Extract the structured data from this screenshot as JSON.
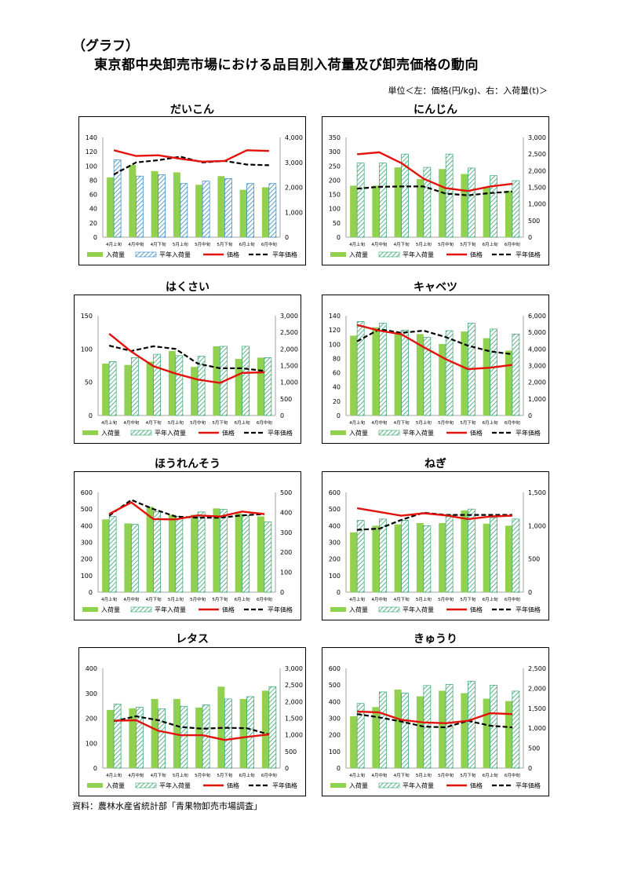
{
  "header": {
    "label": "（グラフ）",
    "title": "東京都中央卸売市場における品目別入荷量及び卸売価格の動向",
    "unit": "単位＜左：価格(円/kg)、右：入荷量(t)＞"
  },
  "source": "資料：農林水産省統計部「青果物卸売市場調査」",
  "legend": [
    "入荷量",
    "平年入荷量",
    "価格",
    "平年価格"
  ],
  "colors": {
    "arrival": "#92D050",
    "hatch_green": "#2FA36B",
    "hatch_blue": "#2E86C1",
    "price": "#E3120B",
    "avg_price": "#000000"
  },
  "chart_data": [
    {
      "type": "bar",
      "title": "だいこん",
      "categories": [
        "4月上旬",
        "4月中旬",
        "4月下旬",
        "5月上旬",
        "5月中旬",
        "5月下旬",
        "6月上旬",
        "6月中旬"
      ],
      "left_axis": {
        "min": 0,
        "max": 140,
        "ticks": [
          0,
          20,
          40,
          60,
          80,
          100,
          120,
          140
        ]
      },
      "right_axis": {
        "min": 0,
        "max": 4000,
        "ticks": [
          "0",
          "1,000",
          "2,000",
          "3,000",
          "4,000"
        ]
      },
      "series": [
        {
          "name": "入荷量",
          "kind": "bar",
          "axis": "right",
          "values": [
            2400,
            2900,
            2650,
            2600,
            2100,
            2450,
            1900,
            2000
          ]
        },
        {
          "name": "平年入荷量",
          "kind": "hatched_bar",
          "axis": "right",
          "values": [
            3100,
            2450,
            2500,
            2150,
            2250,
            2350,
            2150,
            2150
          ]
        },
        {
          "name": "価格",
          "kind": "line",
          "axis": "left",
          "values": [
            122,
            114,
            115,
            110,
            106,
            107,
            122,
            121
          ]
        },
        {
          "name": "平年価格",
          "kind": "dashed_line",
          "axis": "left",
          "values": [
            88,
            105,
            108,
            113,
            105,
            107,
            102,
            101
          ]
        }
      ],
      "hatch": "blue"
    },
    {
      "type": "bar",
      "title": "にんじん",
      "categories": [
        "4月上旬",
        "4月中旬",
        "4月下旬",
        "5月上旬",
        "5月中旬",
        "5月下旬",
        "6月上旬",
        "6月中旬"
      ],
      "left_axis": {
        "min": 0,
        "max": 350,
        "ticks": [
          0,
          50,
          100,
          150,
          200,
          250,
          300,
          350
        ]
      },
      "right_axis": {
        "min": 0,
        "max": 3000,
        "ticks": [
          "0",
          "500",
          "1,000",
          "1,500",
          "2,000",
          "2,500",
          "3,000"
        ]
      },
      "series": [
        {
          "name": "入荷量",
          "kind": "bar",
          "axis": "right",
          "values": [
            1550,
            1550,
            2100,
            1750,
            2050,
            1900,
            1500,
            1400
          ]
        },
        {
          "name": "平年入荷量",
          "kind": "hatched_bar",
          "axis": "right",
          "values": [
            2230,
            2230,
            2500,
            2100,
            2500,
            2080,
            1850,
            1700
          ]
        },
        {
          "name": "価格",
          "kind": "line",
          "axis": "left",
          "values": [
            291,
            298,
            260,
            205,
            172,
            162,
            178,
            187
          ]
        },
        {
          "name": "平年価格",
          "kind": "dashed_line",
          "axis": "left",
          "values": [
            170,
            177,
            178,
            178,
            153,
            147,
            155,
            160
          ]
        }
      ],
      "hatch": "green"
    },
    {
      "type": "bar",
      "title": "はくさい",
      "categories": [
        "4月上旬",
        "4月中旬",
        "4月下旬",
        "5月上旬",
        "5月中旬",
        "5月下旬",
        "6月上旬",
        "6月中旬"
      ],
      "left_axis": {
        "min": 0,
        "max": 150,
        "ticks": [
          0,
          50,
          100,
          150
        ]
      },
      "right_axis": {
        "min": 0,
        "max": 3000,
        "ticks": [
          "0",
          "500",
          "1,000",
          "1,500",
          "2,000",
          "2,500",
          "3,000"
        ]
      },
      "series": [
        {
          "name": "入荷量",
          "kind": "bar",
          "axis": "right",
          "values": [
            1560,
            1520,
            1620,
            1940,
            1460,
            2080,
            1700,
            1740
          ]
        },
        {
          "name": "平年入荷量",
          "kind": "hatched_bar",
          "axis": "right",
          "values": [
            1620,
            1740,
            1840,
            1800,
            1780,
            2080,
            2080,
            1740
          ]
        },
        {
          "name": "価格",
          "kind": "line",
          "axis": "left",
          "values": [
            123,
            96,
            74,
            63,
            54,
            49,
            64,
            65
          ]
        },
        {
          "name": "平年価格",
          "kind": "dashed_line",
          "axis": "left",
          "values": [
            105,
            97,
            104,
            100,
            78,
            71,
            71,
            67
          ]
        }
      ],
      "hatch": "green"
    },
    {
      "type": "bar",
      "title": "キャベツ",
      "categories": [
        "4月上旬",
        "4月中旬",
        "4月下旬",
        "5月上旬",
        "5月中旬",
        "5月下旬",
        "6月上旬",
        "6月中旬"
      ],
      "left_axis": {
        "min": 0,
        "max": 140,
        "ticks": [
          0,
          20,
          40,
          60,
          80,
          100,
          120,
          140
        ]
      },
      "right_axis": {
        "min": 0,
        "max": 6000,
        "ticks": [
          "0",
          "1,000",
          "2,000",
          "3,000",
          "4,000",
          "5,000",
          "6,000"
        ]
      },
      "series": [
        {
          "name": "入荷量",
          "kind": "bar",
          "axis": "right",
          "values": [
            4800,
            5300,
            5000,
            4900,
            4300,
            5050,
            4650,
            3900
          ]
        },
        {
          "name": "平年入荷量",
          "kind": "hatched_bar",
          "axis": "right",
          "values": [
            5650,
            5550,
            5130,
            4700,
            5100,
            5550,
            5200,
            4900
          ]
        },
        {
          "name": "価格",
          "kind": "line",
          "axis": "left",
          "values": [
            127,
            119,
            114,
            96,
            79,
            65,
            67,
            71
          ]
        },
        {
          "name": "平年価格",
          "kind": "dashed_line",
          "axis": "left",
          "values": [
            104,
            121,
            116,
            119,
            110,
            98,
            90,
            86
          ]
        }
      ],
      "hatch": "green"
    },
    {
      "type": "bar",
      "title": "ほうれんそう",
      "categories": [
        "4月上旬",
        "4月中旬",
        "4月下旬",
        "5月上旬",
        "5月中旬",
        "5月下旬",
        "6月上旬",
        "6月中旬"
      ],
      "left_axis": {
        "min": 0,
        "max": 600,
        "ticks": [
          0,
          100,
          200,
          300,
          400,
          500,
          600
        ]
      },
      "right_axis": {
        "min": 0,
        "max": 500,
        "ticks": [
          "0",
          "100",
          "200",
          "300",
          "400",
          "500"
        ]
      },
      "series": [
        {
          "name": "入荷量",
          "kind": "bar",
          "axis": "right",
          "values": [
            365,
            345,
            428,
            388,
            388,
            420,
            395,
            380
          ]
        },
        {
          "name": "平年入荷量",
          "kind": "hatched_bar",
          "axis": "right",
          "values": [
            380,
            340,
            405,
            380,
            402,
            415,
            385,
            352
          ]
        },
        {
          "name": "価格",
          "kind": "line",
          "axis": "left",
          "values": [
            470,
            540,
            440,
            438,
            462,
            455,
            485,
            470
          ]
        },
        {
          "name": "平年価格",
          "kind": "dashed_line",
          "axis": "left",
          "values": [
            460,
            555,
            500,
            455,
            448,
            448,
            462,
            470
          ]
        }
      ],
      "hatch": "green"
    },
    {
      "type": "bar",
      "title": "ねぎ",
      "categories": [
        "4月上旬",
        "4月中旬",
        "4月下旬",
        "5月上旬",
        "5月中旬",
        "5月下旬",
        "6月上旬",
        "6月中旬"
      ],
      "left_axis": {
        "min": 0,
        "max": 600,
        "ticks": [
          0,
          100,
          200,
          300,
          400,
          500,
          600
        ]
      },
      "right_axis": {
        "min": 0,
        "max": 1500,
        "ticks": [
          "0",
          "500",
          "1,000",
          "1,500"
        ]
      },
      "series": [
        {
          "name": "入荷量",
          "kind": "bar",
          "axis": "right",
          "values": [
            900,
            1000,
            1020,
            1040,
            1040,
            1230,
            1030,
            1000
          ]
        },
        {
          "name": "平年入荷量",
          "kind": "hatched_bar",
          "axis": "right",
          "values": [
            1080,
            1100,
            1080,
            1000,
            1160,
            1250,
            1120,
            1100
          ]
        },
        {
          "name": "価格",
          "kind": "line",
          "axis": "left",
          "values": [
            505,
            483,
            460,
            475,
            462,
            440,
            455,
            460
          ]
        },
        {
          "name": "平年価格",
          "kind": "dashed_line",
          "axis": "left",
          "values": [
            375,
            382,
            435,
            478,
            465,
            465,
            465,
            465
          ]
        }
      ],
      "hatch": "green"
    },
    {
      "type": "bar",
      "title": "レタス",
      "categories": [
        "4月上旬",
        "4月中旬",
        "4月下旬",
        "5月上旬",
        "5月中旬",
        "5月下旬",
        "6月上旬",
        "6月中旬"
      ],
      "left_axis": {
        "min": 0,
        "max": 400,
        "ticks": [
          0,
          100,
          200,
          300,
          400
        ]
      },
      "right_axis": {
        "min": 0,
        "max": 3000,
        "ticks": [
          "0",
          "500",
          "1,000",
          "1,500",
          "2,000",
          "2,500",
          "3,000"
        ]
      },
      "series": [
        {
          "name": "入荷量",
          "kind": "bar",
          "axis": "right",
          "values": [
            1750,
            1800,
            2080,
            2080,
            1820,
            2450,
            2080,
            2330
          ]
        },
        {
          "name": "平年入荷量",
          "kind": "hatched_bar",
          "axis": "right",
          "values": [
            1930,
            1830,
            1780,
            1860,
            1900,
            2080,
            2150,
            2450
          ]
        },
        {
          "name": "価格",
          "kind": "line",
          "axis": "left",
          "values": [
            190,
            192,
            150,
            132,
            132,
            113,
            125,
            135
          ]
        },
        {
          "name": "平年価格",
          "kind": "dashed_line",
          "axis": "left",
          "values": [
            188,
            208,
            192,
            165,
            158,
            162,
            160,
            135
          ]
        }
      ],
      "hatch": "green"
    },
    {
      "type": "bar",
      "title": "きゅうり",
      "categories": [
        "4月上旬",
        "4月中旬",
        "4月下旬",
        "5月上旬",
        "5月中旬",
        "5月下旬",
        "6月上旬",
        "6月中旬"
      ],
      "left_axis": {
        "min": 0,
        "max": 600,
        "ticks": [
          0,
          100,
          200,
          300,
          400,
          500,
          600
        ]
      },
      "right_axis": {
        "min": 0,
        "max": 2500,
        "ticks": [
          "0",
          "500",
          "1,000",
          "1,500",
          "2,000",
          "2,500"
        ]
      },
      "series": [
        {
          "name": "入荷量",
          "kind": "bar",
          "axis": "right",
          "values": [
            1300,
            1530,
            1970,
            1800,
            1940,
            1880,
            1740,
            1680
          ]
        },
        {
          "name": "平年入荷量",
          "kind": "hatched_bar",
          "axis": "right",
          "values": [
            1620,
            1910,
            1880,
            2070,
            2100,
            2180,
            2080,
            1930
          ]
        },
        {
          "name": "価格",
          "kind": "line",
          "axis": "left",
          "values": [
            340,
            335,
            290,
            275,
            270,
            285,
            330,
            325
          ]
        },
        {
          "name": "平年価格",
          "kind": "dashed_line",
          "axis": "left",
          "values": [
            325,
            305,
            280,
            250,
            245,
            285,
            255,
            245
          ]
        }
      ],
      "hatch": "green"
    }
  ]
}
